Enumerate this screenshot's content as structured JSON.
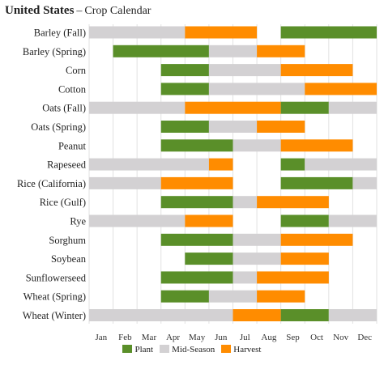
{
  "header": {
    "title": "United States",
    "separator": "–",
    "subtitle": "Crop Calendar"
  },
  "colors": {
    "Plant": "#5a8f29",
    "Mid-Season": "#d3d1d3",
    "Harvest": "#ff8c00",
    "grid": "#e2e2e2"
  },
  "chart_data": {
    "type": "gantt",
    "title": "United States – Crop Calendar",
    "months": [
      "Jan",
      "Feb",
      "Mar",
      "Apr",
      "May",
      "Jun",
      "Jul",
      "Aug",
      "Sep",
      "Oct",
      "Nov",
      "Dec"
    ],
    "x_range": [
      0,
      12
    ],
    "grid": true,
    "legend_position": "bottom",
    "legend": [
      "Plant",
      "Mid-Season",
      "Harvest"
    ],
    "crops": [
      {
        "name": "Barley (Fall)",
        "segments": [
          {
            "stage": "Mid-Season",
            "start": 0,
            "end": 4
          },
          {
            "stage": "Harvest",
            "start": 4,
            "end": 7
          },
          {
            "stage": "Plant",
            "start": 8,
            "end": 12
          }
        ]
      },
      {
        "name": "Barley (Spring)",
        "segments": [
          {
            "stage": "Plant",
            "start": 1,
            "end": 5
          },
          {
            "stage": "Mid-Season",
            "start": 5,
            "end": 7
          },
          {
            "stage": "Harvest",
            "start": 7,
            "end": 9
          }
        ]
      },
      {
        "name": "Corn",
        "segments": [
          {
            "stage": "Plant",
            "start": 3,
            "end": 5
          },
          {
            "stage": "Mid-Season",
            "start": 5,
            "end": 8
          },
          {
            "stage": "Harvest",
            "start": 8,
            "end": 11
          }
        ]
      },
      {
        "name": "Cotton",
        "segments": [
          {
            "stage": "Plant",
            "start": 3,
            "end": 5
          },
          {
            "stage": "Mid-Season",
            "start": 5,
            "end": 9
          },
          {
            "stage": "Harvest",
            "start": 9,
            "end": 12
          }
        ]
      },
      {
        "name": "Oats (Fall)",
        "segments": [
          {
            "stage": "Mid-Season",
            "start": 0,
            "end": 4
          },
          {
            "stage": "Harvest",
            "start": 4,
            "end": 8
          },
          {
            "stage": "Plant",
            "start": 8,
            "end": 10
          },
          {
            "stage": "Mid-Season",
            "start": 10,
            "end": 12
          }
        ]
      },
      {
        "name": "Oats (Spring)",
        "segments": [
          {
            "stage": "Plant",
            "start": 3,
            "end": 5
          },
          {
            "stage": "Mid-Season",
            "start": 5,
            "end": 7
          },
          {
            "stage": "Harvest",
            "start": 7,
            "end": 9
          }
        ]
      },
      {
        "name": "Peanut",
        "segments": [
          {
            "stage": "Plant",
            "start": 3,
            "end": 6
          },
          {
            "stage": "Mid-Season",
            "start": 6,
            "end": 8
          },
          {
            "stage": "Harvest",
            "start": 8,
            "end": 11
          }
        ]
      },
      {
        "name": "Rapeseed",
        "segments": [
          {
            "stage": "Mid-Season",
            "start": 0,
            "end": 5
          },
          {
            "stage": "Harvest",
            "start": 5,
            "end": 6
          },
          {
            "stage": "Plant",
            "start": 8,
            "end": 9
          },
          {
            "stage": "Mid-Season",
            "start": 9,
            "end": 12
          }
        ]
      },
      {
        "name": "Rice (California)",
        "segments": [
          {
            "stage": "Mid-Season",
            "start": 0,
            "end": 3
          },
          {
            "stage": "Harvest",
            "start": 3,
            "end": 6
          },
          {
            "stage": "Plant",
            "start": 8,
            "end": 11
          },
          {
            "stage": "Mid-Season",
            "start": 11,
            "end": 12
          }
        ]
      },
      {
        "name": "Rice (Gulf)",
        "segments": [
          {
            "stage": "Plant",
            "start": 3,
            "end": 6
          },
          {
            "stage": "Mid-Season",
            "start": 6,
            "end": 7
          },
          {
            "stage": "Harvest",
            "start": 7,
            "end": 10
          }
        ]
      },
      {
        "name": "Rye",
        "segments": [
          {
            "stage": "Mid-Season",
            "start": 0,
            "end": 4
          },
          {
            "stage": "Harvest",
            "start": 4,
            "end": 6
          },
          {
            "stage": "Plant",
            "start": 8,
            "end": 10
          },
          {
            "stage": "Mid-Season",
            "start": 10,
            "end": 12
          }
        ]
      },
      {
        "name": "Sorghum",
        "segments": [
          {
            "stage": "Plant",
            "start": 3,
            "end": 6
          },
          {
            "stage": "Mid-Season",
            "start": 6,
            "end": 8
          },
          {
            "stage": "Harvest",
            "start": 8,
            "end": 11
          }
        ]
      },
      {
        "name": "Soybean",
        "segments": [
          {
            "stage": "Plant",
            "start": 4,
            "end": 6
          },
          {
            "stage": "Mid-Season",
            "start": 6,
            "end": 8
          },
          {
            "stage": "Harvest",
            "start": 8,
            "end": 10
          }
        ]
      },
      {
        "name": "Sunflowerseed",
        "segments": [
          {
            "stage": "Plant",
            "start": 3,
            "end": 6
          },
          {
            "stage": "Mid-Season",
            "start": 6,
            "end": 7
          },
          {
            "stage": "Harvest",
            "start": 7,
            "end": 10
          }
        ]
      },
      {
        "name": "Wheat (Spring)",
        "segments": [
          {
            "stage": "Plant",
            "start": 3,
            "end": 5
          },
          {
            "stage": "Mid-Season",
            "start": 5,
            "end": 7
          },
          {
            "stage": "Harvest",
            "start": 7,
            "end": 9
          }
        ]
      },
      {
        "name": "Wheat (Winter)",
        "segments": [
          {
            "stage": "Mid-Season",
            "start": 0,
            "end": 6
          },
          {
            "stage": "Harvest",
            "start": 6,
            "end": 8
          },
          {
            "stage": "Plant",
            "start": 8,
            "end": 10
          },
          {
            "stage": "Mid-Season",
            "start": 10,
            "end": 12
          }
        ]
      }
    ]
  }
}
